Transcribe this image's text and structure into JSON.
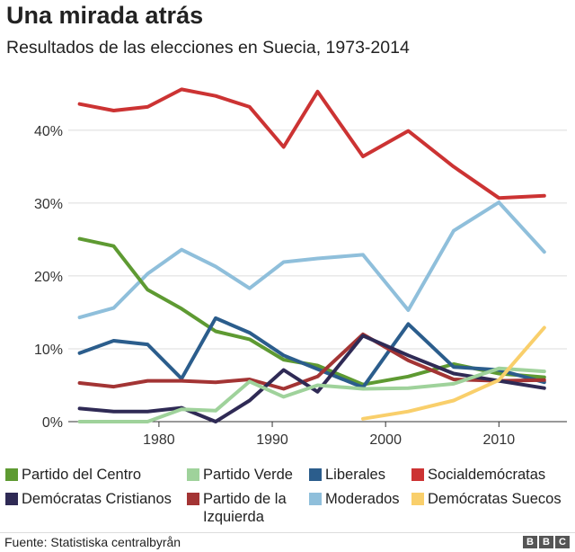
{
  "chart_data": {
    "type": "line",
    "title": "Una mirada atrás",
    "subtitle": "Resultados de las elecciones en Suecia, 1973-2014",
    "xlabel": "",
    "ylabel": "",
    "xlim": [
      1972,
      2016
    ],
    "ylim": [
      0,
      48
    ],
    "grid": true,
    "x_ticks": [
      1980,
      1990,
      2000,
      2010
    ],
    "y_ticks": [
      0,
      10,
      20,
      30,
      40
    ],
    "y_tick_labels": [
      "0%",
      "10%",
      "20%",
      "30%",
      "40%"
    ],
    "legend_position": "bottom",
    "series": [
      {
        "name": "Socialdemócratas",
        "color": "#cc3333",
        "x": [
          1973,
          1976,
          1979,
          1982,
          1985,
          1988,
          1991,
          1994,
          1998,
          2002,
          2006,
          2010,
          2014
        ],
        "values": [
          43.6,
          42.7,
          43.2,
          45.6,
          44.7,
          43.2,
          37.7,
          45.3,
          36.4,
          39.9,
          35.0,
          30.7,
          31.0
        ]
      },
      {
        "name": "Moderados",
        "color": "#8fbfdb",
        "x": [
          1973,
          1976,
          1979,
          1982,
          1985,
          1988,
          1991,
          1994,
          1998,
          2002,
          2006,
          2010,
          2014
        ],
        "values": [
          14.3,
          15.6,
          20.3,
          23.6,
          21.3,
          18.3,
          21.9,
          22.4,
          22.9,
          15.3,
          26.2,
          30.1,
          23.3
        ]
      },
      {
        "name": "Partido del Centro",
        "color": "#5e9a32",
        "x": [
          1973,
          1976,
          1979,
          1982,
          1985,
          1988,
          1991,
          1994,
          1998,
          2002,
          2006,
          2010,
          2014
        ],
        "values": [
          25.1,
          24.1,
          18.1,
          15.5,
          12.4,
          11.3,
          8.5,
          7.7,
          5.1,
          6.2,
          7.9,
          6.6,
          6.1
        ]
      },
      {
        "name": "Liberales",
        "color": "#2b5d8c",
        "x": [
          1973,
          1976,
          1979,
          1982,
          1985,
          1988,
          1991,
          1994,
          1998,
          2002,
          2006,
          2010,
          2014
        ],
        "values": [
          9.4,
          11.1,
          10.6,
          5.9,
          14.2,
          12.2,
          9.1,
          7.2,
          4.7,
          13.4,
          7.5,
          7.1,
          5.4
        ]
      },
      {
        "name": "Partido de la Izquierda",
        "color": "#a33434",
        "x": [
          1973,
          1976,
          1979,
          1982,
          1985,
          1988,
          1991,
          1994,
          1998,
          2002,
          2006,
          2010,
          2014
        ],
        "values": [
          5.3,
          4.8,
          5.6,
          5.6,
          5.4,
          5.8,
          4.5,
          6.2,
          12.0,
          8.4,
          5.8,
          5.6,
          5.7
        ]
      },
      {
        "name": "Demócratas Cristianos",
        "color": "#2f2a55",
        "x": [
          1973,
          1976,
          1979,
          1982,
          1985,
          1988,
          1991,
          1994,
          1998,
          2002,
          2006,
          2010,
          2014
        ],
        "values": [
          1.8,
          1.4,
          1.4,
          1.9,
          0.0,
          2.9,
          7.1,
          4.1,
          11.8,
          9.1,
          6.6,
          5.6,
          4.6
        ]
      },
      {
        "name": "Partido Verde",
        "color": "#9fd29b",
        "x": [
          1973,
          1976,
          1979,
          1982,
          1985,
          1988,
          1991,
          1994,
          1998,
          2002,
          2006,
          2010,
          2014
        ],
        "values": [
          0.0,
          0.0,
          0.0,
          1.7,
          1.5,
          5.5,
          3.4,
          5.0,
          4.5,
          4.6,
          5.2,
          7.3,
          6.9
        ]
      },
      {
        "name": "Demócratas Suecos",
        "color": "#f9cf6b",
        "x": [
          1998,
          2002,
          2006,
          2010,
          2014
        ],
        "values": [
          0.4,
          1.4,
          2.9,
          5.7,
          12.9
        ]
      }
    ]
  },
  "legend": {
    "items": [
      {
        "label": "Partido del Centro",
        "color": "#5e9a32"
      },
      {
        "label": "Partido Verde",
        "color": "#9fd29b"
      },
      {
        "label": "Liberales",
        "color": "#2b5d8c"
      },
      {
        "label": "Socialdemócratas",
        "color": "#cc3333"
      },
      {
        "label": "Demócratas Cristianos",
        "color": "#2f2a55"
      },
      {
        "label": "Partido de la Izquierda",
        "color": "#a33434"
      },
      {
        "label": "Moderados",
        "color": "#8fbfdb"
      },
      {
        "label": "Demócratas Suecos",
        "color": "#f9cf6b"
      }
    ]
  },
  "footer": {
    "source": "Fuente: Statistiska centralbyrån",
    "logo_letters": [
      "B",
      "B",
      "C"
    ]
  }
}
